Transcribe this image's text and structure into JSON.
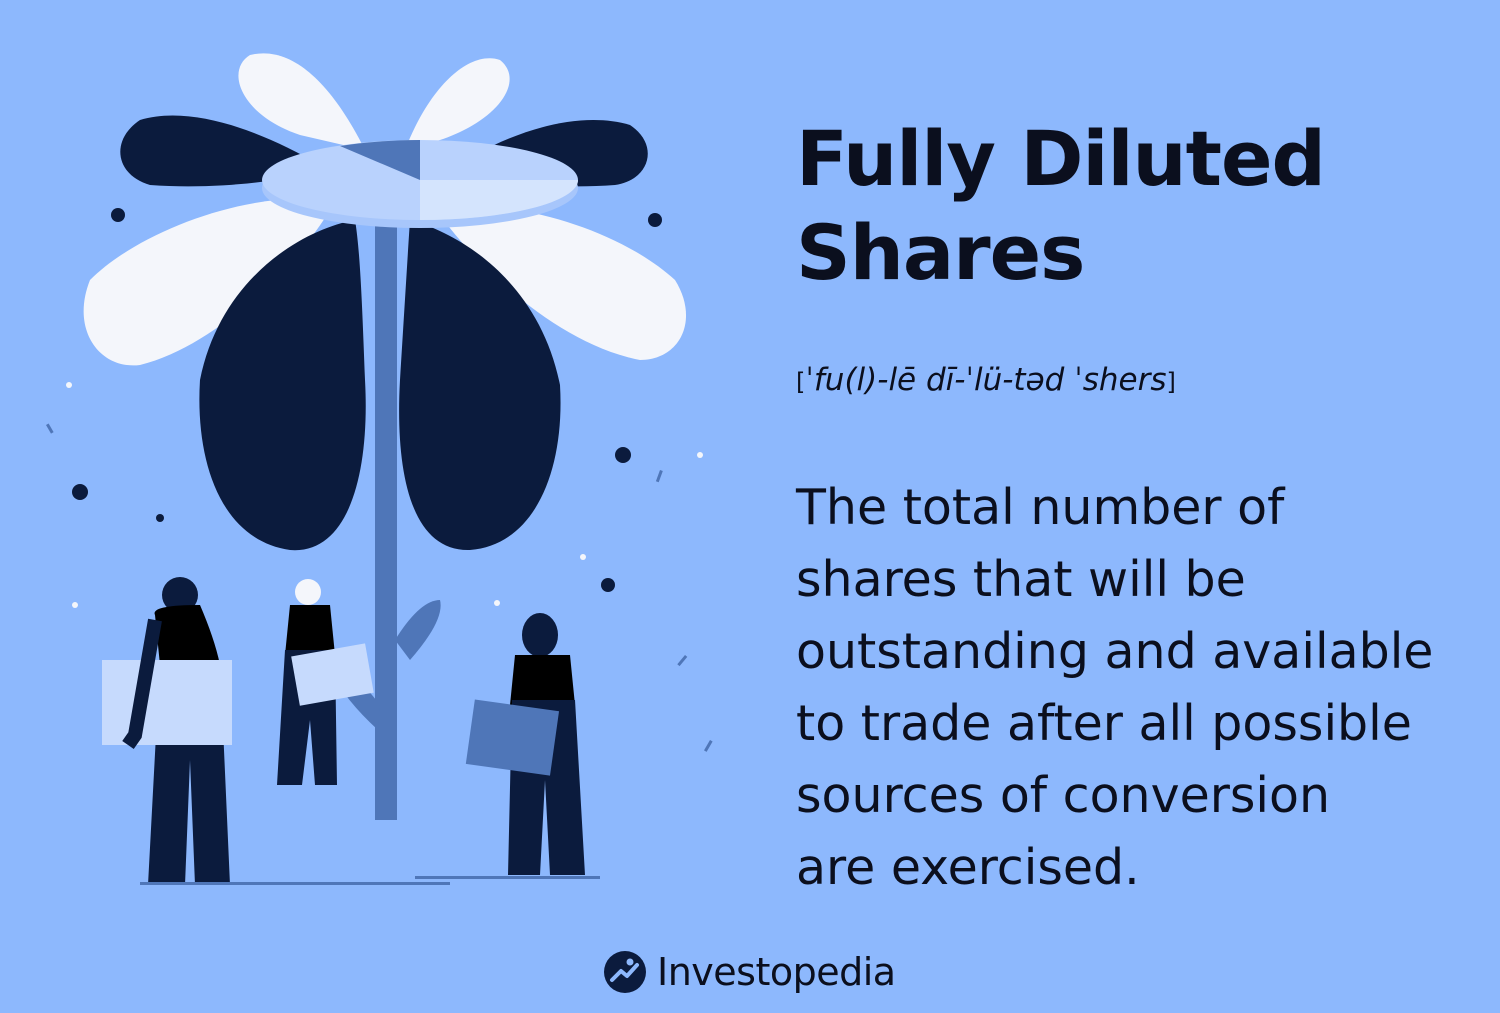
{
  "term": {
    "title_line1": "Fully Diluted",
    "title_line2": "Shares",
    "pronunciation": "ˈfu(l)-lē dī-ˈlü-təd ˈshers",
    "bracket_open": "[",
    "bracket_close": "]"
  },
  "definition": {
    "lines": [
      "The total number of",
      "shares that will be",
      "outstanding and available",
      "to trade after all possible",
      "sources of conversion",
      "are exercised."
    ]
  },
  "brand": {
    "name": "Investopedia"
  },
  "colors": {
    "background": "#8db8fd",
    "dark_navy": "#0b1b3d",
    "petal_white": "#f4f6fb",
    "stem_blue": "#4f76b8",
    "light_blue": "#c6dafd"
  },
  "illustration": {
    "subject": "flower with pie-chart center and three people holding folders"
  }
}
